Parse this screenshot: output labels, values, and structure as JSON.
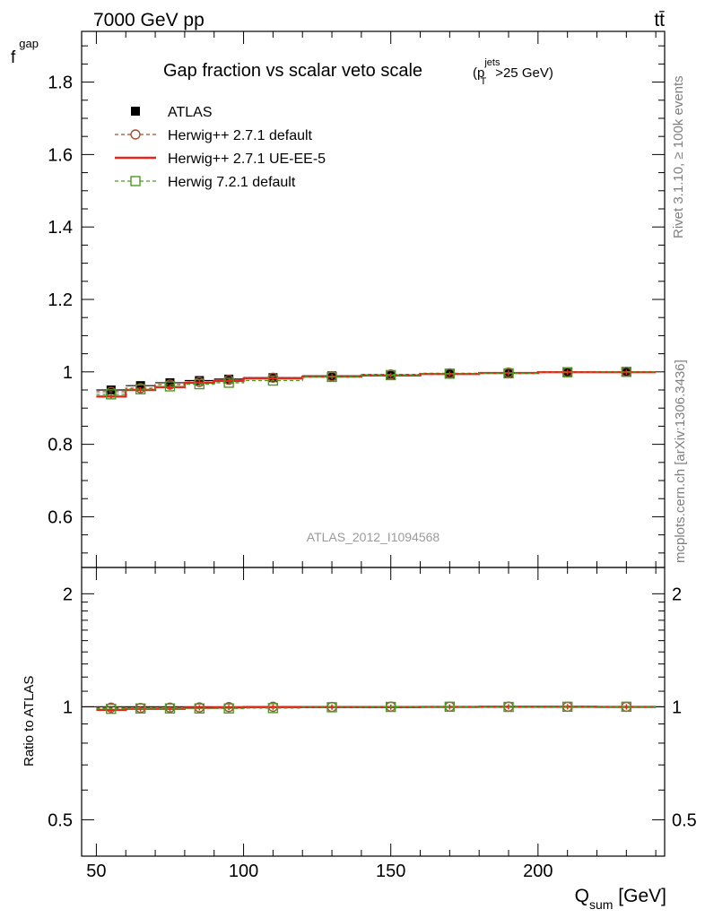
{
  "header": {
    "left": "7000 GeV pp",
    "right": "tt̄"
  },
  "side_labels": {
    "rivet": "Rivet 3.1.10, ≥ 100k events",
    "mcplots": "mcplots.cern.ch [arXiv:1306.3436]"
  },
  "chart_data": {
    "type": "line",
    "title": "Gap fraction vs scalar veto scale",
    "title_cut": {
      "p": "p",
      "sup": "jets",
      "sub": "T",
      "tail": ">25 GeV)"
    },
    "analysis_id": "ATLAS_2012_I1094568",
    "ylabel": "f",
    "ylabel_sub": "gap",
    "xlabel": "Q",
    "xlabel_sub": "sum",
    "xlabel_unit": " [GeV]",
    "ratio_ylabel": "Ratio to ATLAS",
    "xlim": [
      45,
      243
    ],
    "ylim": [
      0.46,
      1.94
    ],
    "ratio_ylim": [
      0.4,
      2.35
    ],
    "x_ticks": [
      50,
      100,
      150,
      200
    ],
    "y_ticks": [
      0.6,
      0.8,
      1,
      1.2,
      1.4,
      1.6,
      1.8
    ],
    "ratio_ticks": [
      0.5,
      1,
      2
    ],
    "x": [
      55,
      65,
      75,
      85,
      95,
      110,
      130,
      150,
      170,
      190,
      210,
      230
    ],
    "xerr": [
      5,
      5,
      5,
      5,
      5,
      10,
      10,
      10,
      10,
      10,
      10,
      10
    ],
    "legend_position": "top-left",
    "series": [
      {
        "name": "ATLAS",
        "style": "data",
        "color": "#000000",
        "values": [
          0.95,
          0.962,
          0.97,
          0.976,
          0.98,
          0.984,
          0.989,
          0.992,
          0.995,
          0.997,
          0.999,
          1.0
        ]
      },
      {
        "name": "Herwig++ 2.7.1 default",
        "style": "dashed-circle",
        "color": "#a0522d",
        "values": [
          0.945,
          0.955,
          0.965,
          0.972,
          0.978,
          0.984,
          0.988,
          0.993,
          0.996,
          0.998,
          0.999,
          1.0
        ]
      },
      {
        "name": "Herwig++ 2.7.1 UE-EE-5",
        "style": "solid",
        "color": "#e8251b",
        "values": [
          0.932,
          0.95,
          0.958,
          0.97,
          0.975,
          0.982,
          0.987,
          0.99,
          0.994,
          0.997,
          0.999,
          0.999
        ]
      },
      {
        "name": "Herwig 7.2.1 default",
        "style": "dashed-square",
        "color": "#4a9a24",
        "values": [
          0.938,
          0.952,
          0.96,
          0.966,
          0.97,
          0.976,
          0.986,
          0.991,
          0.995,
          0.996,
          0.999,
          1.0
        ]
      }
    ]
  }
}
